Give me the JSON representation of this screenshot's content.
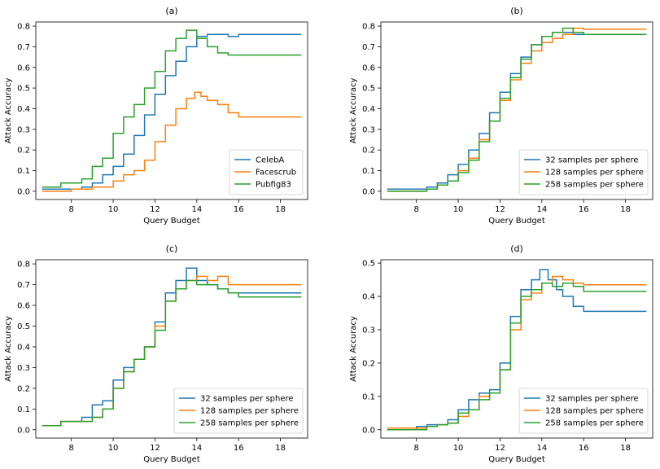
{
  "chart_data": [
    {
      "type": "line",
      "title": "(a)",
      "xlabel": "Query Budget",
      "ylabel": "Attack Accuracy",
      "xlim": [
        6.3,
        19.3
      ],
      "ylim": [
        -0.04,
        0.82
      ],
      "xticks": [
        8,
        10,
        12,
        14,
        16,
        18
      ],
      "yticks": [
        0.0,
        0.1,
        0.2,
        0.3,
        0.4,
        0.5,
        0.6,
        0.7,
        0.8
      ],
      "ytick_labels": [
        "0.0",
        "0.1",
        "0.2",
        "0.3",
        "0.4",
        "0.5",
        "0.6",
        "0.7",
        "0.8"
      ],
      "legend": "lower-right",
      "series": [
        {
          "name": "CelebA",
          "color": "#1f77b4",
          "x": [
            6.6,
            7.5,
            8.5,
            9.0,
            9.5,
            10.0,
            10.5,
            11.0,
            11.5,
            12.0,
            12.5,
            13.0,
            13.5,
            14.0,
            14.5,
            15.0,
            15.5,
            16.0,
            16.5,
            17.0,
            18.0,
            19.0
          ],
          "y": [
            0.01,
            0.01,
            0.02,
            0.04,
            0.08,
            0.12,
            0.18,
            0.27,
            0.37,
            0.47,
            0.56,
            0.63,
            0.7,
            0.75,
            0.76,
            0.76,
            0.75,
            0.76,
            0.76,
            0.76,
            0.76,
            0.76
          ]
        },
        {
          "name": "Facescrub",
          "color": "#ff7f0e",
          "x": [
            6.6,
            7.5,
            8.0,
            8.5,
            9.0,
            9.5,
            10.0,
            10.5,
            11.0,
            11.5,
            12.0,
            12.5,
            13.0,
            13.5,
            13.9,
            14.2,
            14.5,
            15.0,
            15.5,
            16.0,
            17.0,
            18.0,
            19.0
          ],
          "y": [
            0.0,
            0.0,
            0.01,
            0.01,
            0.02,
            0.02,
            0.05,
            0.08,
            0.1,
            0.15,
            0.24,
            0.32,
            0.4,
            0.45,
            0.48,
            0.46,
            0.44,
            0.42,
            0.38,
            0.36,
            0.36,
            0.36,
            0.36
          ]
        },
        {
          "name": "Pubfig83",
          "color": "#2ca02c",
          "x": [
            6.6,
            7.5,
            8.0,
            8.5,
            9.0,
            9.5,
            10.0,
            10.5,
            11.0,
            11.5,
            12.0,
            12.5,
            13.0,
            13.5,
            14.0,
            14.5,
            15.0,
            15.5,
            16.0,
            17.0,
            18.0,
            19.0
          ],
          "y": [
            0.02,
            0.04,
            0.04,
            0.06,
            0.12,
            0.16,
            0.28,
            0.36,
            0.42,
            0.5,
            0.58,
            0.68,
            0.74,
            0.78,
            0.74,
            0.7,
            0.67,
            0.66,
            0.66,
            0.66,
            0.66,
            0.66
          ]
        }
      ]
    },
    {
      "type": "line",
      "title": "(b)",
      "xlabel": "Query Budget",
      "ylabel": "Attack Accuracy",
      "xlim": [
        6.3,
        19.3
      ],
      "ylim": [
        -0.04,
        0.82
      ],
      "xticks": [
        8,
        10,
        12,
        14,
        16,
        18
      ],
      "yticks": [
        0.0,
        0.1,
        0.2,
        0.3,
        0.4,
        0.5,
        0.6,
        0.7,
        0.8
      ],
      "ytick_labels": [
        "0.0",
        "0.1",
        "0.2",
        "0.3",
        "0.4",
        "0.5",
        "0.6",
        "0.7",
        "0.8"
      ],
      "legend": "lower-right",
      "series": [
        {
          "name": "32 samples per sphere",
          "color": "#1f77b4",
          "x": [
            6.6,
            7.5,
            8.5,
            9.0,
            9.5,
            10.0,
            10.5,
            11.0,
            11.5,
            12.0,
            12.5,
            13.0,
            13.5,
            14.0,
            14.5,
            15.0,
            15.5,
            16.0,
            17.0,
            18.0,
            19.0
          ],
          "y": [
            0.01,
            0.01,
            0.02,
            0.04,
            0.08,
            0.13,
            0.2,
            0.28,
            0.38,
            0.48,
            0.57,
            0.65,
            0.71,
            0.75,
            0.77,
            0.77,
            0.76,
            0.76,
            0.76,
            0.76,
            0.76
          ]
        },
        {
          "name": "128 samples per sphere",
          "color": "#ff7f0e",
          "x": [
            6.6,
            7.5,
            8.5,
            9.0,
            9.5,
            10.0,
            10.5,
            11.0,
            11.5,
            12.0,
            12.5,
            13.0,
            13.5,
            14.0,
            14.5,
            15.0,
            15.5,
            16.0,
            17.0,
            18.0,
            19.0
          ],
          "y": [
            0.0,
            0.0,
            0.01,
            0.03,
            0.05,
            0.1,
            0.16,
            0.25,
            0.34,
            0.44,
            0.54,
            0.62,
            0.68,
            0.72,
            0.74,
            0.76,
            0.79,
            0.785,
            0.785,
            0.785,
            0.785
          ]
        },
        {
          "name": "258 samples per sphere",
          "color": "#2ca02c",
          "x": [
            6.6,
            7.5,
            8.5,
            9.0,
            9.5,
            10.0,
            10.5,
            11.0,
            11.5,
            12.0,
            12.5,
            13.0,
            13.5,
            14.0,
            14.5,
            15.0,
            15.5,
            16.0,
            17.0,
            18.0,
            19.0
          ],
          "y": [
            0.0,
            0.0,
            0.01,
            0.03,
            0.05,
            0.09,
            0.15,
            0.24,
            0.34,
            0.45,
            0.55,
            0.64,
            0.71,
            0.75,
            0.77,
            0.79,
            0.77,
            0.76,
            0.76,
            0.76,
            0.76
          ]
        }
      ]
    },
    {
      "type": "line",
      "title": "(c)",
      "xlabel": "Query Budget",
      "ylabel": "Attack Accuracy",
      "xlim": [
        6.3,
        19.3
      ],
      "ylim": [
        -0.04,
        0.82
      ],
      "xticks": [
        8,
        10,
        12,
        14,
        16,
        18
      ],
      "yticks": [
        0.0,
        0.1,
        0.2,
        0.3,
        0.4,
        0.5,
        0.6,
        0.7,
        0.8
      ],
      "ytick_labels": [
        "0.0",
        "0.1",
        "0.2",
        "0.3",
        "0.4",
        "0.5",
        "0.6",
        "0.7",
        "0.8"
      ],
      "legend": "lower-right",
      "series": [
        {
          "name": "32 samples per sphere",
          "color": "#1f77b4",
          "x": [
            6.6,
            7.5,
            8.0,
            8.5,
            9.0,
            9.5,
            10.0,
            10.5,
            11.0,
            11.5,
            12.0,
            12.5,
            13.0,
            13.5,
            14.0,
            14.5,
            15.0,
            15.5,
            16.0,
            17.0,
            18.0,
            19.0
          ],
          "y": [
            0.02,
            0.04,
            0.04,
            0.06,
            0.12,
            0.14,
            0.24,
            0.3,
            0.34,
            0.4,
            0.52,
            0.66,
            0.72,
            0.78,
            0.72,
            0.7,
            0.68,
            0.66,
            0.66,
            0.66,
            0.66,
            0.66
          ]
        },
        {
          "name": "128 samples per sphere",
          "color": "#ff7f0e",
          "x": [
            6.6,
            7.5,
            8.0,
            8.5,
            9.0,
            9.5,
            10.0,
            10.5,
            11.0,
            11.5,
            12.0,
            12.5,
            13.0,
            13.5,
            14.0,
            14.5,
            15.0,
            15.5,
            16.0,
            17.0,
            18.0,
            19.0
          ],
          "y": [
            0.02,
            0.04,
            0.04,
            0.04,
            0.06,
            0.1,
            0.2,
            0.28,
            0.34,
            0.4,
            0.5,
            0.62,
            0.68,
            0.72,
            0.74,
            0.72,
            0.74,
            0.7,
            0.7,
            0.7,
            0.7,
            0.7
          ]
        },
        {
          "name": "258 samples per sphere",
          "color": "#2ca02c",
          "x": [
            6.6,
            7.5,
            8.0,
            8.5,
            9.0,
            9.5,
            10.0,
            10.5,
            11.0,
            11.5,
            12.0,
            12.5,
            13.0,
            13.5,
            14.0,
            14.5,
            15.0,
            15.5,
            16.0,
            17.0,
            18.0,
            19.0
          ],
          "y": [
            0.02,
            0.04,
            0.04,
            0.04,
            0.06,
            0.1,
            0.2,
            0.28,
            0.34,
            0.4,
            0.48,
            0.62,
            0.68,
            0.72,
            0.7,
            0.7,
            0.68,
            0.66,
            0.64,
            0.64,
            0.64,
            0.64
          ]
        }
      ]
    },
    {
      "type": "line",
      "title": "(d)",
      "xlabel": "Query Budget",
      "ylabel": "Attack Accuracy",
      "xlim": [
        6.3,
        19.3
      ],
      "ylim": [
        -0.025,
        0.51
      ],
      "xticks": [
        8,
        10,
        12,
        14,
        16,
        18
      ],
      "yticks": [
        0.0,
        0.1,
        0.2,
        0.3,
        0.4,
        0.5
      ],
      "ytick_labels": [
        "0.0",
        "0.1",
        "0.2",
        "0.3",
        "0.4",
        "0.5"
      ],
      "legend": "lower-right",
      "series": [
        {
          "name": "32 samples per sphere",
          "color": "#1f77b4",
          "x": [
            6.6,
            7.5,
            8.0,
            8.5,
            9.0,
            9.5,
            10.0,
            10.5,
            11.0,
            11.5,
            12.0,
            12.5,
            13.0,
            13.5,
            13.9,
            14.3,
            14.7,
            15.0,
            15.5,
            16.0,
            17.0,
            18.0,
            19.0
          ],
          "y": [
            0.0,
            0.0,
            0.01,
            0.015,
            0.015,
            0.03,
            0.06,
            0.09,
            0.11,
            0.12,
            0.2,
            0.34,
            0.42,
            0.45,
            0.48,
            0.45,
            0.42,
            0.4,
            0.37,
            0.355,
            0.355,
            0.355,
            0.355
          ]
        },
        {
          "name": "128 samples per sphere",
          "color": "#ff7f0e",
          "x": [
            6.6,
            7.5,
            8.0,
            8.5,
            9.0,
            9.5,
            10.0,
            10.5,
            11.0,
            11.5,
            12.0,
            12.5,
            13.0,
            13.5,
            14.0,
            14.5,
            15.0,
            15.5,
            16.0,
            17.0,
            18.0,
            19.0
          ],
          "y": [
            0.005,
            0.005,
            0.005,
            0.01,
            0.015,
            0.02,
            0.04,
            0.06,
            0.1,
            0.11,
            0.18,
            0.3,
            0.39,
            0.41,
            0.44,
            0.46,
            0.45,
            0.44,
            0.435,
            0.435,
            0.435,
            0.435
          ]
        },
        {
          "name": "258 samples per sphere",
          "color": "#2ca02c",
          "x": [
            6.6,
            7.5,
            8.0,
            8.5,
            9.0,
            9.5,
            10.0,
            10.5,
            11.0,
            11.5,
            12.0,
            12.5,
            13.0,
            13.5,
            14.0,
            14.5,
            15.0,
            15.5,
            16.0,
            17.0,
            18.0,
            19.0
          ],
          "y": [
            0.0,
            0.0,
            0.0,
            0.01,
            0.015,
            0.02,
            0.05,
            0.06,
            0.09,
            0.11,
            0.18,
            0.32,
            0.4,
            0.42,
            0.44,
            0.43,
            0.44,
            0.43,
            0.415,
            0.415,
            0.415,
            0.415
          ]
        }
      ]
    }
  ]
}
